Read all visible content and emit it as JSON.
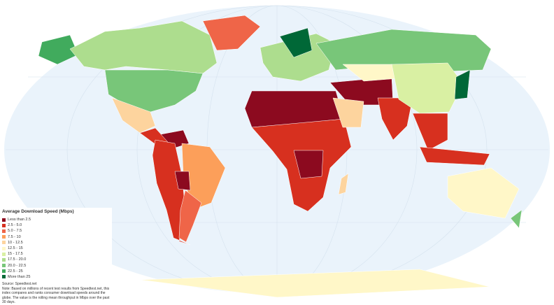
{
  "legend": {
    "title": "Average Download Speed (Mbps)",
    "items": [
      {
        "label": "Less than 2.5",
        "color": "#8c0a1f"
      },
      {
        "label": "2.5 - 5.0",
        "color": "#d7301f"
      },
      {
        "label": "5.0 - 7.5",
        "color": "#ef6548"
      },
      {
        "label": "7.5 - 10",
        "color": "#fc9f5a"
      },
      {
        "label": "10 - 12.5",
        "color": "#fdd49e"
      },
      {
        "label": "12.5 - 15",
        "color": "#fff7c8"
      },
      {
        "label": "15 - 17.5",
        "color": "#d9f0a3"
      },
      {
        "label": "17.5 - 20.0",
        "color": "#addd8e"
      },
      {
        "label": "20.0 - 22.5",
        "color": "#78c679"
      },
      {
        "label": "22.5 - 25",
        "color": "#41ab5d"
      },
      {
        "label": "More than 25",
        "color": "#006837"
      }
    ]
  },
  "source": "Source: Speedtest.net",
  "note": "Note: Based on millions of recent test results from Speedtest.net, this index compares and ranks consumer download speeds around the globe. The value is the rolling mean throughput in Mbps over the past 30 days."
}
